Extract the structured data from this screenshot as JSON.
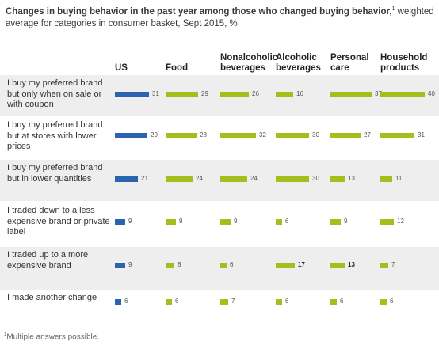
{
  "title": {
    "bold": "Changes in buying behavior in the past year among those who changed buying behavior,",
    "bold_sup": "1",
    "rest": "weighted average for categories in consumer basket, Sept 2015, %"
  },
  "footnote": {
    "sup": "1",
    "text": "Multiple answers possible."
  },
  "colors": {
    "us": "#2a63b0",
    "category": "#a6bd1c",
    "shade": "#eeeeee"
  },
  "chart_data": {
    "type": "bar",
    "categories": [
      "I buy my preferred brand but only when on sale or with coupon",
      "I buy my preferred brand but at stores with lower prices",
      "I buy my preferred brand but in lower quantities",
      "I traded down to a less expensive brand or private label",
      "I traded up to a more expensive brand",
      "I made another change"
    ],
    "series": [
      {
        "name": "US",
        "values": [
          31,
          29,
          21,
          9,
          9,
          6
        ]
      },
      {
        "name": "Food",
        "values": [
          29,
          28,
          24,
          9,
          8,
          6
        ]
      },
      {
        "name": "Nonalcoholic beverages",
        "values": [
          26,
          32,
          24,
          9,
          6,
          7
        ]
      },
      {
        "name": "Alcoholic beverages",
        "values": [
          16,
          30,
          30,
          6,
          17,
          6
        ]
      },
      {
        "name": "Personal care",
        "values": [
          37,
          27,
          13,
          9,
          13,
          6
        ]
      },
      {
        "name": "Household products",
        "values": [
          40,
          31,
          11,
          12,
          7,
          6
        ]
      }
    ],
    "bold_values": [
      [
        4,
        3
      ],
      [
        4,
        4
      ]
    ]
  }
}
